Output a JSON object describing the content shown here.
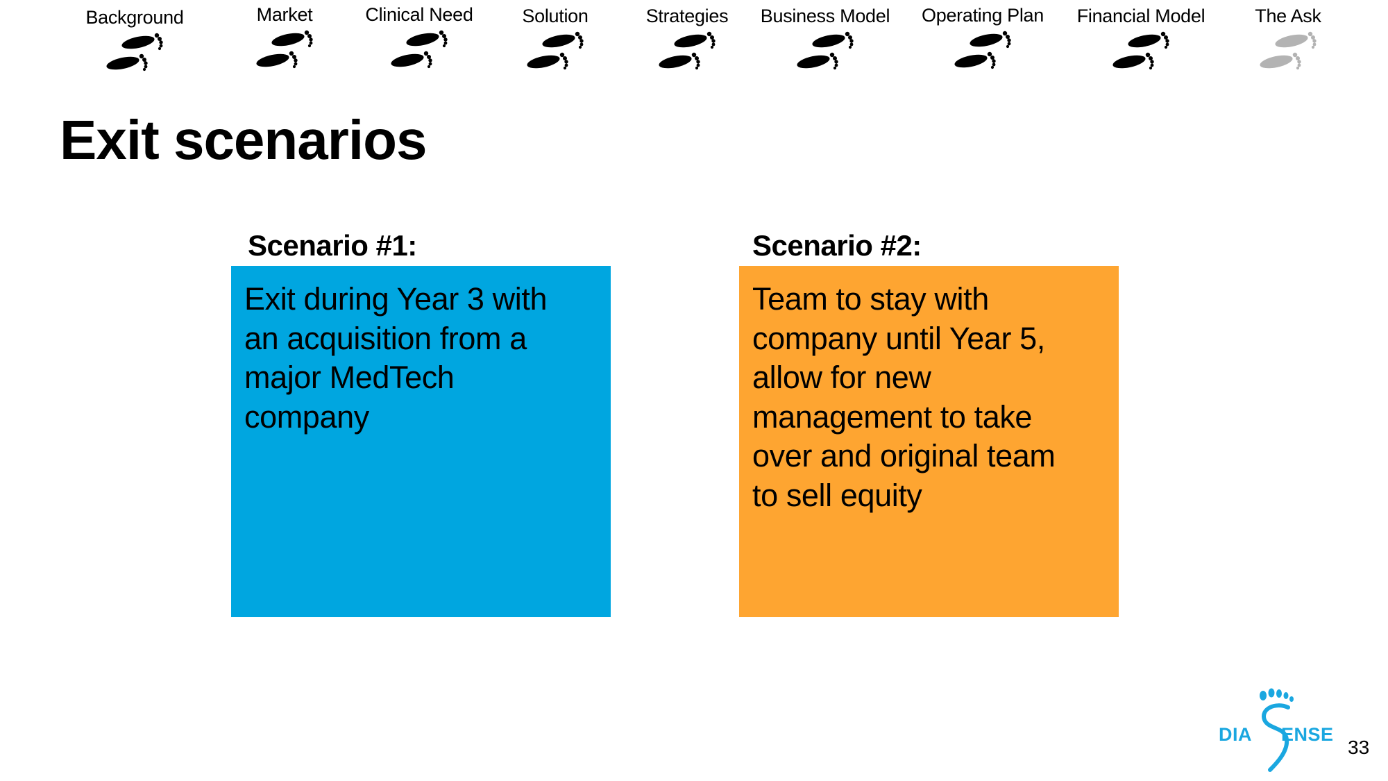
{
  "nav": {
    "steps": [
      {
        "label": "Background",
        "state": "completed"
      },
      {
        "label": "Market",
        "state": "completed"
      },
      {
        "label": "Clinical Need",
        "state": "completed"
      },
      {
        "label": "Solution",
        "state": "completed"
      },
      {
        "label": "Strategies",
        "state": "completed"
      },
      {
        "label": "Business Model",
        "state": "completed"
      },
      {
        "label": "Operating Plan",
        "state": "completed"
      },
      {
        "label": "Financial Model",
        "state": "completed"
      },
      {
        "label": "The Ask",
        "state": "pending"
      }
    ],
    "icon": "footprints-icon",
    "colors": {
      "completed": "#000000",
      "pending": "#b3b3b3"
    }
  },
  "title": "Exit scenarios",
  "scenarios": [
    {
      "heading": "Scenario #1:",
      "lines": [
        "Exit during Year 3 with",
        "an acquisition from a",
        "major MedTech",
        "company"
      ],
      "color": "#00a6e0"
    },
    {
      "heading": "Scenario #2:",
      "lines": [
        "Team to stay with",
        "company until Year 5,",
        "allow for new",
        "management to take",
        "over and original team",
        "to sell equity"
      ],
      "color": "#fea531"
    }
  ],
  "logo": {
    "left_text": "DIA",
    "right_text": "ENSE",
    "icon": "foot-s-logo-icon",
    "color": "#1aa7e0"
  },
  "page_number": "33"
}
